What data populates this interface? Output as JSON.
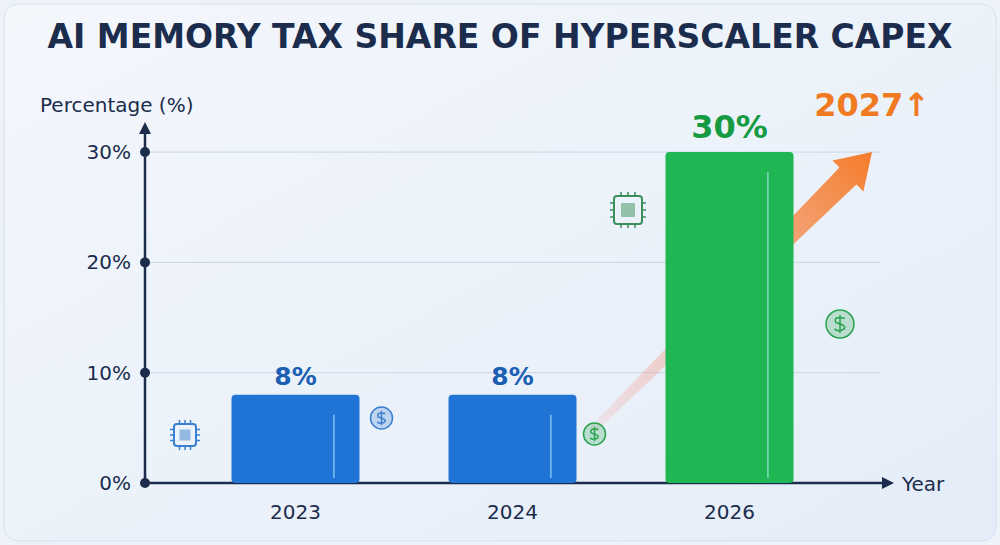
{
  "chart_data": {
    "type": "bar",
    "title": "AI MEMORY TAX SHARE OF HYPERSCALER CAPEX",
    "y_label": "Percentage (%)",
    "x_label": "Year",
    "annotation": "2027↑",
    "categories": [
      "2023",
      "2024",
      "2026"
    ],
    "values": [
      8,
      8,
      30
    ],
    "value_labels": [
      "8%",
      "8%",
      "30%"
    ],
    "colors": [
      "#1f74d6",
      "#1f74d6",
      "#1fb653"
    ],
    "ylim": [
      0,
      32
    ],
    "yticks": [
      {
        "value": 0,
        "label": "0%"
      },
      {
        "value": 10,
        "label": "10%"
      },
      {
        "value": 20,
        "label": "20%"
      },
      {
        "value": 30,
        "label": "30%"
      }
    ],
    "grid": true,
    "data_labels": true
  }
}
